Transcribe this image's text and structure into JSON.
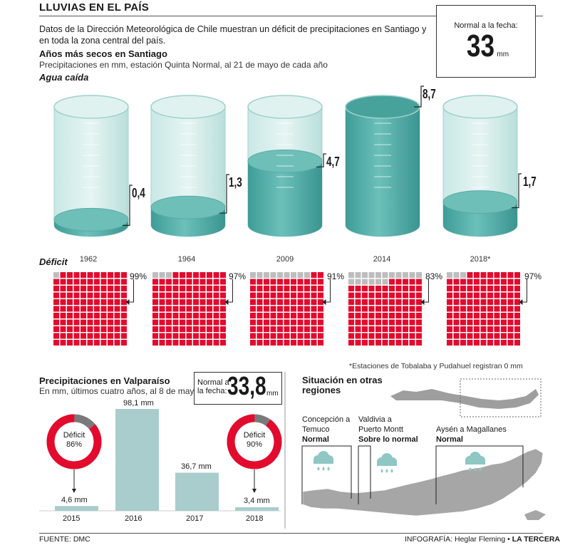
{
  "header": {
    "title": "LLUVIAS EN EL PAÍS",
    "intro": "Datos de la Dirección Meteorológica de Chile muestran un déficit de precipitaciones en Santiago y en toda la zona central del país."
  },
  "normal_santiago": {
    "label": "Normal a la fecha:",
    "value": "33",
    "unit": "mm"
  },
  "santiago": {
    "title": "Años más secos en Santiago",
    "subtitle": "Precipitaciones en mm, estación Quinta Normal, al 21 de mayo de cada año",
    "agua_label": "Agua caída",
    "deficit_label": "Déficit",
    "note": "*Estaciones de Tobalaba y Pudahuel registran 0 mm"
  },
  "valparaiso": {
    "title": "Precipitaciones en Valparaíso",
    "subtitle": "En mm, últimos cuatro años, al 8 de mayo",
    "normal_label_1": "Normal a",
    "normal_label_2": "la fecha:",
    "normal_value": "33,8",
    "normal_unit": "mm",
    "deficit_word": "Déficit"
  },
  "regiones": {
    "title_1": "Situación en otras",
    "title_2": "regiones",
    "zones": [
      {
        "name_1": "Concepción a",
        "name_2": "Temuco",
        "status": "Normal"
      },
      {
        "name_1": "Valdivia a",
        "name_2": "Puerto Montt",
        "status": "Sobre lo normal"
      },
      {
        "name_1": "Aysén a Magallanes",
        "name_2": "",
        "status": "Normal"
      }
    ]
  },
  "footer": {
    "source": "FUENTE: DMC",
    "credit": "INFOGRAFÍA: Heglar Fleming",
    "bullet": "•",
    "brand": "LA TERCERA"
  },
  "colors": {
    "water": "#5cb3ae",
    "deficit": "#e30a2e",
    "gray": "#bdbdbd",
    "bar": "#a9cdcd"
  },
  "chart_data": [
    {
      "type": "bar",
      "title": "Años más secos en Santiago",
      "categories": [
        "1962",
        "1964",
        "2009",
        "2014",
        "2018*"
      ],
      "values": [
        0.4,
        1.3,
        4.7,
        8.7,
        1.7
      ],
      "value_labels": [
        "0,4",
        "1,3",
        "4,7",
        "8,7",
        "1,7"
      ],
      "ylabel": "Agua caída",
      "ylim": [
        0,
        8.7
      ]
    },
    {
      "type": "table",
      "title": "Déficit",
      "categories": [
        "1962",
        "1964",
        "2009",
        "2014",
        "2018*"
      ],
      "values": [
        99,
        97,
        91,
        83,
        97
      ],
      "value_labels": [
        "99%",
        "97%",
        "91%",
        "83%",
        "97%"
      ]
    },
    {
      "type": "bar",
      "title": "Precipitaciones en Valparaíso",
      "categories": [
        "2015",
        "2016",
        "2017",
        "2018"
      ],
      "values": [
        4.6,
        98.1,
        36.7,
        3.4
      ],
      "value_labels": [
        "4,6 mm",
        "98,1 mm",
        "36,7 mm",
        "3,4 mm"
      ],
      "ylim": [
        0,
        98.1
      ]
    },
    {
      "type": "pie",
      "title": "Déficit",
      "categories": [
        "2015",
        "2018"
      ],
      "values": [
        86,
        90
      ],
      "value_labels": [
        "86%",
        "90%"
      ]
    }
  ]
}
